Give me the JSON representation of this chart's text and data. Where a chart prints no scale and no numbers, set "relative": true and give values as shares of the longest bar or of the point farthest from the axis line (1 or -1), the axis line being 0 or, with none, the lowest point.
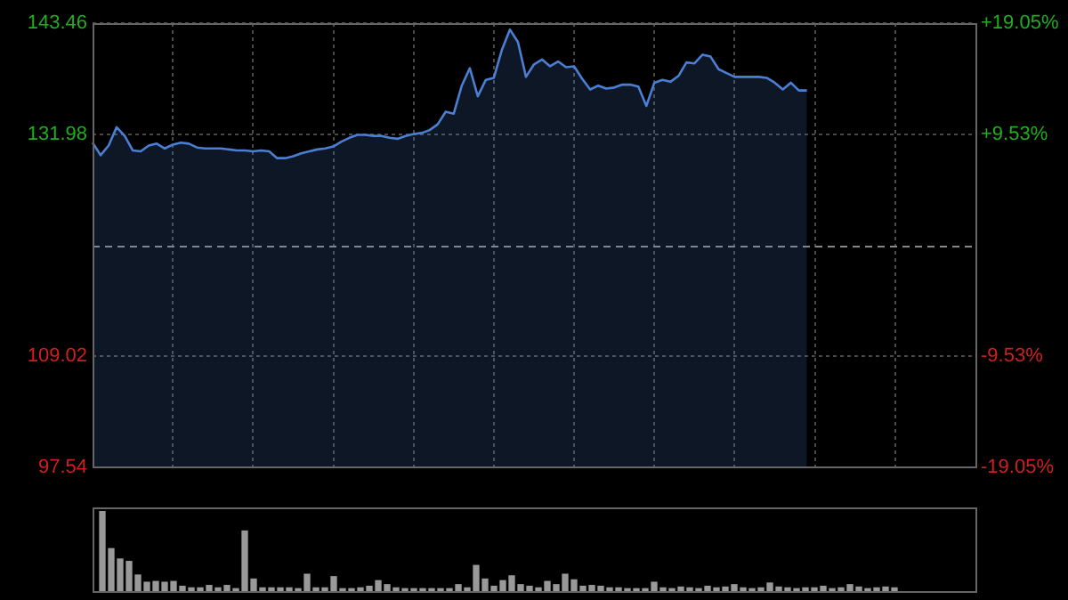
{
  "chart_data": [
    {
      "type": "area",
      "categories": [
        null,
        null,
        null,
        null,
        null,
        null,
        null,
        null,
        null,
        null,
        null,
        null,
        null,
        null,
        null,
        null,
        null,
        null,
        null,
        null,
        null,
        null,
        null,
        null,
        null,
        null,
        null,
        null,
        null,
        null,
        null,
        null,
        null,
        null,
        null,
        null,
        null,
        null,
        null,
        null,
        null,
        null,
        null,
        null,
        null,
        null,
        null,
        null,
        null,
        null,
        null,
        null,
        null,
        null,
        null,
        null,
        null,
        null,
        null,
        null,
        null,
        null,
        null,
        null,
        null,
        null,
        null,
        null,
        null,
        null,
        null,
        null,
        null,
        null,
        null,
        null,
        null,
        null,
        null,
        null,
        null,
        null,
        null,
        null,
        null,
        null,
        null,
        null,
        null,
        null,
        null,
        null,
        null,
        null,
        null,
        null,
        null,
        null,
        null,
        null,
        null,
        null,
        null,
        null,
        null,
        null,
        null,
        null,
        null,
        null,
        null
      ],
      "ylim": [
        97.54,
        143.46
      ],
      "yticks": [
        97.54,
        109.02,
        131.98,
        143.46
      ],
      "y2lim": [
        -19.05,
        19.05
      ],
      "y2ticks": [
        {
          "value": -19.05,
          "label": "-19.05%"
        },
        {
          "value": -9.53,
          "label": "-9.53%"
        },
        {
          "value": 9.53,
          "label": "+9.53%"
        },
        {
          "value": 19.05,
          "label": "+19.05%"
        }
      ],
      "grid": true,
      "legend": false,
      "ref_lines": [
        {
          "axis": "y",
          "value": 120.5,
          "color": "#888888",
          "line_style": "dashed"
        }
      ],
      "series": [
        {
          "color": "#4a7fd4",
          "values": [
            131.1,
            129.8,
            130.8,
            132.7,
            131.8,
            130.3,
            130.2,
            130.8,
            131.0,
            130.5,
            130.9,
            131.1,
            131.0,
            130.6,
            130.5,
            130.5,
            130.5,
            130.4,
            130.3,
            130.3,
            130.2,
            130.3,
            130.2,
            129.5,
            129.5,
            129.7,
            130.0,
            130.2,
            130.4,
            130.5,
            130.7,
            131.2,
            131.6,
            131.9,
            131.9,
            131.8,
            131.8,
            131.6,
            131.5,
            131.8,
            132.0,
            132.1,
            132.4,
            133.0,
            134.3,
            134.1,
            137.0,
            138.8,
            135.9,
            137.6,
            137.8,
            140.7,
            142.8,
            141.5,
            137.9,
            139.2,
            139.7,
            139.0,
            139.5,
            138.9,
            139.0,
            137.7,
            136.6,
            137.0,
            136.7,
            136.8,
            137.1,
            137.1,
            136.9,
            134.9,
            137.3,
            137.6,
            137.4,
            138.0,
            139.4,
            139.3,
            140.2,
            140.0,
            138.7,
            138.3,
            137.9,
            137.9,
            137.9,
            137.9,
            137.8,
            137.3,
            136.6,
            137.3,
            136.5,
            136.5,
            null,
            null,
            null,
            null,
            null,
            null,
            null,
            null,
            null,
            null,
            null,
            null,
            null,
            null,
            null,
            null,
            null,
            null,
            null,
            null,
            null
          ]
        }
      ]
    },
    {
      "type": "bar",
      "relative": true,
      "grid": false,
      "legend": false,
      "categories": [
        null,
        null,
        null,
        null,
        null,
        null,
        null,
        null,
        null,
        null,
        null,
        null,
        null,
        null,
        null,
        null,
        null,
        null,
        null,
        null,
        null,
        null,
        null,
        null,
        null,
        null,
        null,
        null,
        null,
        null,
        null,
        null,
        null,
        null,
        null,
        null,
        null,
        null,
        null,
        null,
        null,
        null,
        null,
        null,
        null,
        null,
        null,
        null,
        null,
        null,
        null,
        null,
        null,
        null,
        null,
        null,
        null,
        null,
        null,
        null,
        null,
        null,
        null,
        null,
        null,
        null,
        null,
        null,
        null,
        null,
        null,
        null,
        null,
        null,
        null,
        null,
        null,
        null,
        null,
        null,
        null,
        null,
        null,
        null,
        null,
        null,
        null,
        null,
        null,
        null
      ],
      "color": "#999999",
      "values": [
        1,
        0.53,
        0.4,
        0.37,
        0.2,
        0.11,
        0.12,
        0.11,
        0.12,
        0.06,
        0.04,
        0.04,
        0.07,
        0.04,
        0.07,
        0.03,
        0.75,
        0.15,
        0.04,
        0.04,
        0.04,
        0.04,
        0.03,
        0.21,
        0.04,
        0.04,
        0.18,
        0.03,
        0.03,
        0.04,
        0.06,
        0.13,
        0.08,
        0.04,
        0.03,
        0.03,
        0.03,
        0.03,
        0.03,
        0.03,
        0.08,
        0.04,
        0.32,
        0.15,
        0.06,
        0.13,
        0.19,
        0.08,
        0.06,
        0.04,
        0.12,
        0.08,
        0.21,
        0.14,
        0.06,
        0.07,
        0.06,
        0.04,
        0.04,
        0.03,
        0.03,
        0.03,
        0.11,
        0.04,
        0.03,
        0.05,
        0.04,
        0.03,
        0.06,
        0.04,
        0.05,
        0.08,
        0.04,
        0.03,
        0.04,
        0.1,
        0.05,
        0.04,
        0.03,
        0.04,
        0.04,
        0.06,
        0.03,
        0.04,
        0.08,
        0.05,
        0.03,
        0.04,
        0.05,
        0.04
      ]
    }
  ]
}
